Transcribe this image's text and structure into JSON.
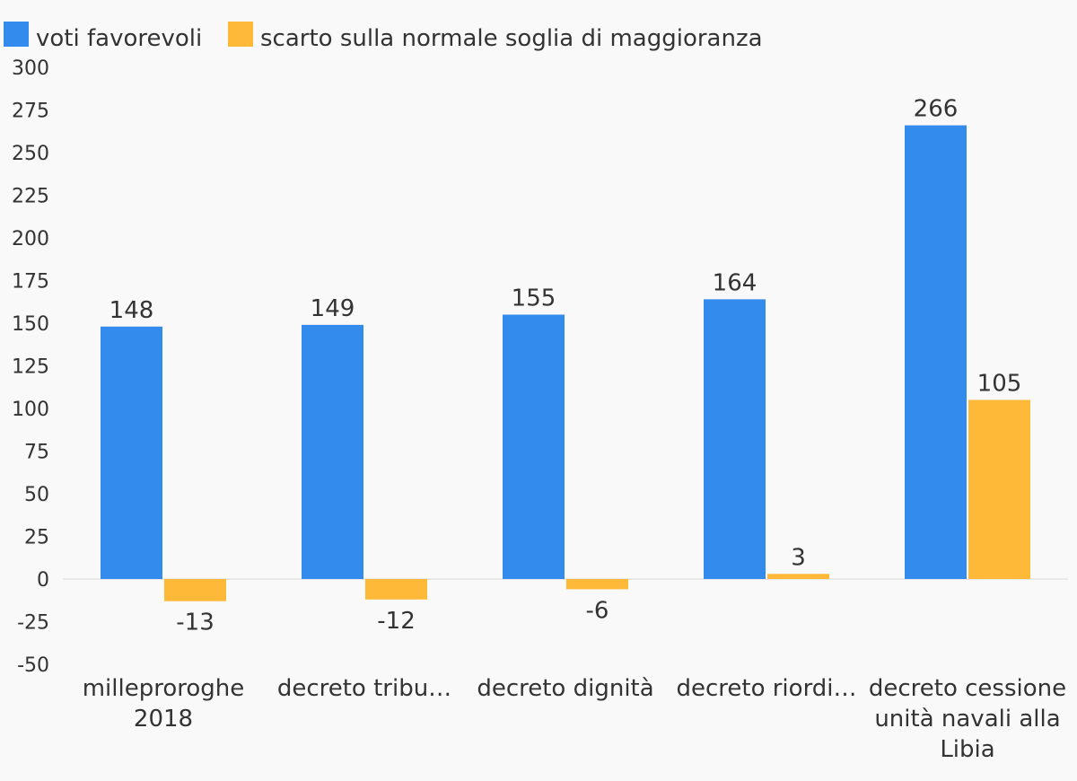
{
  "chart_data": {
    "type": "bar",
    "categories": [
      "milleproroghe 2018",
      "decreto tribu…",
      "decreto dignità",
      "decreto riordi…",
      "decreto cessione unità navali alla Libia"
    ],
    "series": [
      {
        "name": "voti favorevoli",
        "color": "#338bed",
        "values": [
          148,
          149,
          155,
          164,
          266
        ]
      },
      {
        "name": "scarto sulla normale soglia di maggioranza",
        "color": "#ffb938",
        "values": [
          -13,
          -12,
          -6,
          3,
          105
        ]
      }
    ],
    "yticks": [
      300,
      275,
      250,
      225,
      200,
      175,
      150,
      125,
      100,
      75,
      50,
      25,
      0,
      -25,
      -50
    ],
    "ylim": [
      -50,
      300
    ],
    "legend_position": "top-left",
    "grid": false
  }
}
